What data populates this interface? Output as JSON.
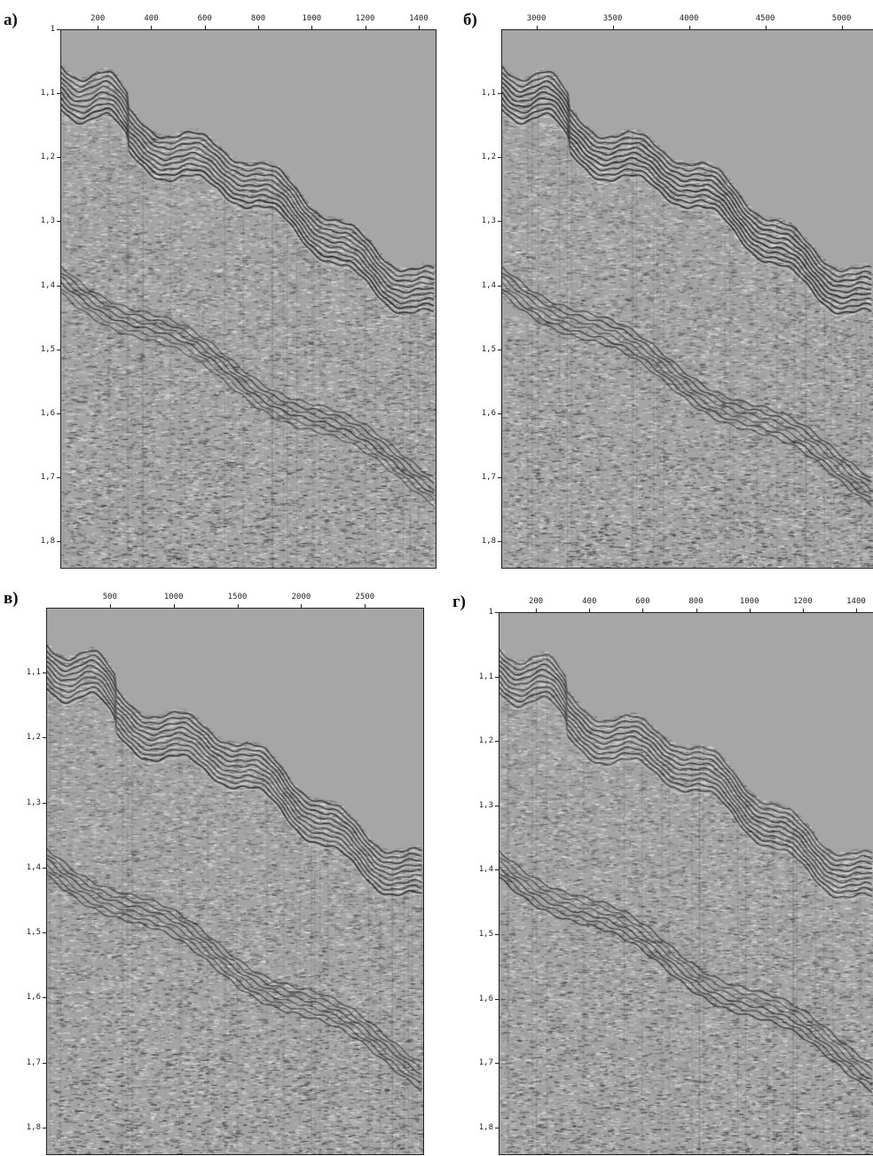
{
  "panels": [
    {
      "label": "а)",
      "x_ticks": [
        "200",
        "400",
        "600",
        "800",
        "1000",
        "1200",
        "1400"
      ],
      "y_ticks": [
        "1",
        "1,1",
        "1,2",
        "1,3",
        "1,4",
        "1,5",
        "1,6",
        "1,7",
        "1,8"
      ],
      "x_range": [
        60,
        1460
      ],
      "y_range": [
        1.0,
        1.84
      ]
    },
    {
      "label": "б)",
      "x_ticks": [
        "3000",
        "3500",
        "4000",
        "4500",
        "5000"
      ],
      "y_ticks": [
        "1,1",
        "1,2",
        "1,3",
        "1,4",
        "1,5",
        "1,6",
        "1,7",
        "1,8"
      ],
      "x_range": [
        2770,
        5200
      ],
      "y_range": [
        1.0,
        1.84
      ]
    },
    {
      "label": "в)",
      "x_ticks": [
        "500",
        "1000",
        "1500",
        "2000",
        "2500"
      ],
      "y_ticks": [
        "1,1",
        "1,2",
        "1,3",
        "1,4",
        "1,5",
        "1,6",
        "1,7",
        "1,8"
      ],
      "x_range": [
        0,
        2950
      ],
      "y_range": [
        1.0,
        1.84
      ]
    },
    {
      "label": "г)",
      "x_ticks": [
        "200",
        "400",
        "600",
        "800",
        "1000",
        "1200",
        "1400"
      ],
      "y_ticks": [
        "1",
        "1,1",
        "1,2",
        "1,3",
        "1,4",
        "1,5",
        "1,6",
        "1,7",
        "1,8"
      ],
      "x_range": [
        60,
        1460
      ],
      "y_range": [
        1.0,
        1.84
      ]
    }
  ]
}
